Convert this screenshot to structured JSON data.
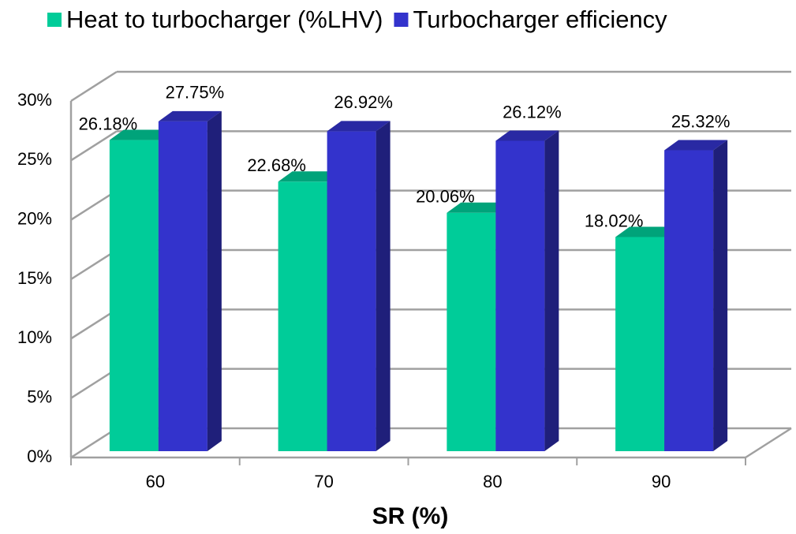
{
  "chart_data": {
    "type": "bar3d",
    "x_label": "SR (%)",
    "categories": [
      "60",
      "70",
      "80",
      "90"
    ],
    "series": [
      {
        "name": "Heat to turbocharger (%LHV)",
        "color": "#00cc99",
        "values": [
          26.18,
          22.68,
          20.06,
          18.02
        ],
        "value_labels": [
          "26.18%",
          "22.68%",
          "20.06%",
          "18.02%"
        ]
      },
      {
        "name": "Turbocharger efficiency",
        "color": "#3333cc",
        "values": [
          27.75,
          26.92,
          26.12,
          25.32
        ],
        "value_labels": [
          "27.75%",
          "26.92%",
          "26.12%",
          "25.32%"
        ]
      }
    ],
    "ylim": [
      0,
      30
    ],
    "yticks": [
      {
        "value": 0,
        "label": "0%"
      },
      {
        "value": 5,
        "label": "5%"
      },
      {
        "value": 10,
        "label": "10%"
      },
      {
        "value": 15,
        "label": "15%"
      },
      {
        "value": 20,
        "label": "20%"
      },
      {
        "value": 25,
        "label": "25%"
      },
      {
        "value": 30,
        "label": "30%"
      }
    ],
    "grid": true,
    "legend": "top"
  }
}
